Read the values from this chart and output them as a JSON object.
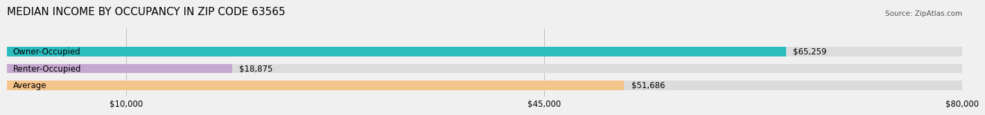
{
  "title": "MEDIAN INCOME BY OCCUPANCY IN ZIP CODE 63565",
  "source": "Source: ZipAtlas.com",
  "categories": [
    "Owner-Occupied",
    "Renter-Occupied",
    "Average"
  ],
  "values": [
    65259,
    18875,
    51686
  ],
  "bar_colors": [
    "#2bbcbe",
    "#c4a8d0",
    "#f5c48a"
  ],
  "value_labels": [
    "$65,259",
    "$18,875",
    "$51,686"
  ],
  "xlim": [
    0,
    80000
  ],
  "xticks": [
    10000,
    45000,
    80000
  ],
  "xtick_labels": [
    "$10,000",
    "$45,000",
    "$80,000"
  ],
  "title_fontsize": 11,
  "label_fontsize": 8.5,
  "bar_height": 0.55,
  "background_color": "#f0f0f0",
  "bar_bg_color": "#dcdcdc"
}
